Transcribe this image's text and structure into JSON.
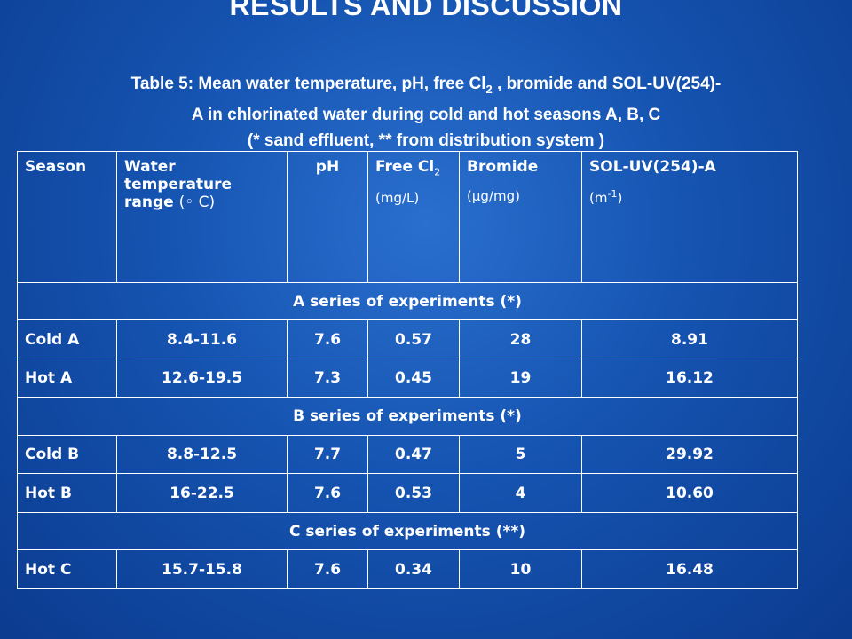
{
  "slide": {
    "title": "RESULTS AND DISCUSSION",
    "caption_line1_pre": "Table 5: Mean water temperature, pH, free Cl",
    "caption_line1_sub": "2",
    "caption_line1_post": " , bromide and SOL-UV(254)-",
    "caption_line2": "A in chlorinated water during cold and hot seasons A, B, C",
    "caption_line3": "(* sand effluent, ** from distribution system )"
  },
  "table": {
    "headers": {
      "season": "Season",
      "water_temp": "Water temperature range",
      "water_temp_unit": "(◦ C)",
      "ph": "pH",
      "free_cl": "Free Cl",
      "free_cl_sub": "2",
      "free_cl_unit": "(mg/L)",
      "bromide": "Bromide",
      "bromide_unit": "(μg/mg)",
      "soluv": "SOL-UV(254)-A",
      "soluv_unit_base": "(m",
      "soluv_unit_sup": "-1",
      "soluv_unit_close": ")"
    },
    "sections": [
      {
        "label": "A series of experiments (*)",
        "rows": [
          {
            "season": "Cold A",
            "temp": "8.4-11.6",
            "ph": "7.6",
            "cl": "0.57",
            "bromide": "28",
            "soluv": "8.91"
          },
          {
            "season": "Hot A",
            "temp": "12.6-19.5",
            "ph": "7.3",
            "cl": "0.45",
            "bromide": "19",
            "soluv": "16.12"
          }
        ]
      },
      {
        "label": "B series of experiments (*)",
        "rows": [
          {
            "season": "Cold B",
            "temp": "8.8-12.5",
            "ph": "7.7",
            "cl": "0.47",
            "bromide": "5",
            "soluv": "29.92"
          },
          {
            "season": "Hot B",
            "temp": "16-22.5",
            "ph": "7.6",
            "cl": "0.53",
            "bromide": "4",
            "soluv": "10.60"
          }
        ]
      },
      {
        "label": "C series of experiments (**)",
        "rows": [
          {
            "season": "Hot C",
            "temp": "15.7-15.8",
            "ph": "7.6",
            "cl": "0.34",
            "bromide": "10",
            "soluv": "16.48"
          }
        ]
      }
    ]
  }
}
